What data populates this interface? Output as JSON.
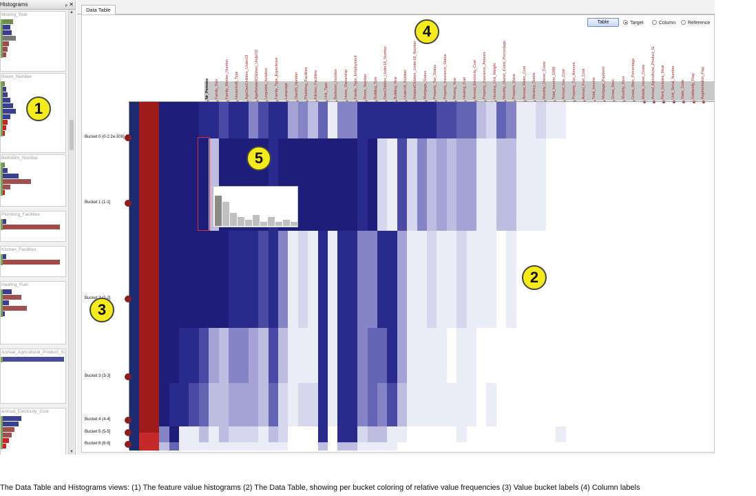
{
  "histograms_panel": {
    "title": "Histograms",
    "controls": {
      "pin": "ₚ",
      "close": "✕"
    },
    "cards": [
      {
        "title": "Moving_Year",
        "bars": [
          {
            "w": 18,
            "c": "#6f8f4f"
          },
          {
            "w": 14,
            "c": "#3b3f8f"
          },
          {
            "w": 16,
            "c": "#3b3f8f"
          },
          {
            "w": 22,
            "c": "#777777"
          },
          {
            "w": 12,
            "c": "#a14a4a"
          },
          {
            "w": 10,
            "c": "#a14a4a"
          },
          {
            "w": 8,
            "c": "#a14a4a"
          }
        ]
      },
      {
        "title": "Room_Number",
        "bars": [
          {
            "w": 6,
            "c": "#6f8f4f"
          },
          {
            "w": 8,
            "c": "#3b3f8f"
          },
          {
            "w": 10,
            "c": "#3b3f8f"
          },
          {
            "w": 14,
            "c": "#3b3f8f"
          },
          {
            "w": 18,
            "c": "#3b3f8f"
          },
          {
            "w": 22,
            "c": "#3b3f8f"
          },
          {
            "w": 14,
            "c": "#3b3f8f"
          },
          {
            "w": 10,
            "c": "#cc2222"
          },
          {
            "w": 8,
            "c": "#cc2222"
          },
          {
            "w": 6,
            "c": "#cc2222"
          }
        ]
      },
      {
        "title": "Bedroom_Number",
        "bars": [
          {
            "w": 6,
            "c": "#6f8f4f"
          },
          {
            "w": 10,
            "c": "#3b3f8f"
          },
          {
            "w": 26,
            "c": "#3b3f8f"
          },
          {
            "w": 44,
            "c": "#a05050"
          },
          {
            "w": 14,
            "c": "#a05050"
          },
          {
            "w": 6,
            "c": "#cc2222"
          }
        ]
      },
      {
        "title": "Plumbing_Facilities",
        "bars": [
          {
            "w": 8,
            "c": "#3b3f8f"
          },
          {
            "w": 86,
            "c": "#a14a4a"
          }
        ]
      },
      {
        "title": "Kitchen_Facilities",
        "bars": [
          {
            "w": 8,
            "c": "#3b3f8f"
          },
          {
            "w": 86,
            "c": "#a14a4a"
          }
        ]
      },
      {
        "title": "Heating_Fuel",
        "bars": [
          {
            "w": 16,
            "c": "#3b3f8f"
          },
          {
            "w": 30,
            "c": "#a05050"
          },
          {
            "w": 12,
            "c": "#3b3f8f"
          },
          {
            "w": 38,
            "c": "#a05050"
          },
          {
            "w": 6,
            "c": "#3b3f8f"
          }
        ]
      },
      {
        "title": "Annual_Agricultural_Product_Si",
        "bars": [
          {
            "w": 92,
            "c": "#4a4a9a"
          }
        ]
      },
      {
        "title": "Annual_Electricity_Cost",
        "bars": [
          {
            "w": 30,
            "c": "#3b3f8f"
          },
          {
            "w": 26,
            "c": "#3b3f8f"
          },
          {
            "w": 20,
            "c": "#a05050"
          },
          {
            "w": 16,
            "c": "#a05050"
          },
          {
            "w": 12,
            "c": "#cc2222"
          },
          {
            "w": 8,
            "c": "#cc2222"
          }
        ]
      }
    ]
  },
  "main": {
    "tab_label": "Data Table",
    "table_button": "Table",
    "radios": [
      {
        "label": "Target",
        "selected": true
      },
      {
        "label": "Column",
        "selected": false
      },
      {
        "label": "Reference",
        "selected": false
      }
    ]
  },
  "columns": [
    {
      "name": "Nr_Persons",
      "black": true
    },
    {
      "name": "Family_Size"
    },
    {
      "name": "Family_Worker_Number"
    },
    {
      "name": "Household_Type"
    },
    {
      "name": "AgeOwnChildren_Under18"
    },
    {
      "name": "AgeRelatedChildren_Under18"
    },
    {
      "name": "Linguistic_Isolation"
    },
    {
      "name": "Family_Type_Experience"
    },
    {
      "name": "Language"
    },
    {
      "name": "Own65_Number"
    },
    {
      "name": "Plumbing_Facilities"
    },
    {
      "name": "Kitchen_Facilities"
    },
    {
      "name": "Unit_Type"
    },
    {
      "name": "Bedroom_Number"
    },
    {
      "name": "Home_Ownership"
    },
    {
      "name": "Family_Type_Employment"
    },
    {
      "name": "Room_Number"
    },
    {
      "name": "Building_Size"
    },
    {
      "name": "OwnChildren_Under18_Number"
    },
    {
      "name": "Building_Year"
    },
    {
      "name": "Under18_Number"
    },
    {
      "name": "RelatedChildren_Under18_Number"
    },
    {
      "name": "Mortgage_Status"
    },
    {
      "name": "Property_Tax_Status"
    },
    {
      "name": "Property_Insurance_Status"
    },
    {
      "name": "Moving_Year"
    },
    {
      "name": "Heating_Fuel"
    },
    {
      "name": "Annual_Electricity_Cost"
    },
    {
      "name": "Property_Insurance_Amount"
    },
    {
      "name": "Housing_Unit_Weight"
    },
    {
      "name": "Monthly_Owner_Costs_Percentage"
    },
    {
      "name": "Property_Value"
    },
    {
      "name": "Annual_Water_Cost"
    },
    {
      "name": "Vacancy_Status"
    },
    {
      "name": "Monthly_Owner_Costs"
    },
    {
      "name": "Total_Income_1999"
    },
    {
      "name": "Annual_Gas_Cost"
    },
    {
      "name": "Property_Tax_Amount"
    },
    {
      "name": "Annual_Fuel_Cost"
    },
    {
      "name": "Total_Income"
    },
    {
      "name": "Mortgage_Payment"
    },
    {
      "name": "Gross_Rent"
    },
    {
      "name": "Monthly_Rent"
    },
    {
      "name": "Gross_Rent_Percentage"
    },
    {
      "name": "Mobile_Home_Costs"
    },
    {
      "name": "Annual_Agricultural_Product_Si"
    },
    {
      "name": "Rent_Includes_Meal"
    },
    {
      "name": "Unit_Serial_Number"
    },
    {
      "name": "State_Code"
    },
    {
      "name": "Subfamily_Flag"
    },
    {
      "name": "Augmentation_Flag"
    }
  ],
  "rows": [
    {
      "label": "Bucket 0 (0-2.2e-308]",
      "shades": [
        9,
        8,
        8,
        9,
        9,
        9,
        9,
        8,
        8,
        7,
        8,
        8,
        5,
        7,
        8,
        8,
        4,
        5,
        3,
        6,
        1,
        5,
        5,
        8,
        8,
        8,
        8,
        8,
        8,
        8,
        8,
        7,
        7,
        6,
        6,
        3,
        2,
        6,
        5,
        1,
        1,
        2,
        1,
        1,
        0,
        0,
        0,
        0,
        0,
        0,
        0
      ]
    },
    {
      "label": "Bucket 1 (1-1]",
      "shades": [
        9,
        8,
        8,
        9,
        9,
        9,
        9,
        9,
        3,
        9,
        9,
        9,
        9,
        9,
        8,
        9,
        9,
        9,
        9,
        9,
        9,
        9,
        9,
        8,
        9,
        2,
        1,
        7,
        2,
        5,
        3,
        4,
        3,
        4,
        4,
        1,
        1,
        3,
        3,
        1,
        1,
        1,
        0,
        0,
        0,
        0,
        0,
        0,
        0,
        0,
        0
      ]
    },
    {
      "label": "Bucket 2 (2-2]",
      "shades": [
        9,
        8,
        8,
        9,
        9,
        9,
        9,
        9,
        9,
        9,
        8,
        8,
        8,
        7,
        8,
        5,
        1,
        2,
        1,
        8,
        1,
        8,
        8,
        5,
        5,
        8,
        8,
        4,
        1,
        1,
        2,
        1,
        1,
        2,
        1,
        1,
        1,
        0,
        1,
        0,
        0,
        0,
        0,
        0,
        0,
        0,
        0,
        0,
        0,
        0,
        0
      ]
    },
    {
      "label": "Bucket 3 (3-3]",
      "shades": [
        9,
        8,
        8,
        9,
        9,
        8,
        8,
        7,
        4,
        3,
        5,
        5,
        4,
        3,
        7,
        3,
        1,
        1,
        1,
        8,
        1,
        8,
        8,
        5,
        6,
        6,
        8,
        4,
        1,
        1,
        1,
        1,
        0,
        1,
        1,
        0,
        0,
        0,
        0,
        0,
        0,
        0,
        0,
        0,
        0,
        0,
        0,
        0,
        0,
        0,
        0
      ]
    },
    {
      "label": "Bucket 4 (4-4]",
      "shades": [
        9,
        8,
        8,
        9,
        8,
        8,
        7,
        6,
        3,
        3,
        4,
        4,
        4,
        3,
        6,
        2,
        1,
        2,
        2,
        8,
        1,
        8,
        8,
        5,
        6,
        5,
        7,
        3,
        1,
        1,
        1,
        1,
        1,
        1,
        1,
        0,
        1,
        0,
        0,
        0,
        0,
        0,
        0,
        0,
        0,
        0,
        0,
        0,
        0,
        0,
        0
      ]
    },
    {
      "label": "Bucket 5 (5-5]",
      "shades": [
        9,
        8,
        8,
        5,
        9,
        1,
        1,
        3,
        1,
        3,
        2,
        2,
        2,
        1,
        3,
        2,
        0,
        0,
        0,
        8,
        0,
        8,
        8,
        2,
        3,
        3,
        1,
        1,
        0,
        0,
        0,
        0,
        0,
        1,
        0,
        0,
        0,
        0,
        0,
        0,
        0,
        0,
        0,
        1,
        0,
        0,
        0,
        0,
        0,
        0,
        0
      ]
    },
    {
      "label": "Bucket 6 (6-6]",
      "shades": [
        9,
        8,
        8,
        3,
        6,
        1,
        1,
        1,
        1,
        1,
        1,
        1,
        1,
        1,
        1,
        1,
        0,
        0,
        0,
        3,
        0,
        3,
        3,
        1,
        1,
        1,
        1,
        0,
        0,
        0,
        0,
        0,
        0,
        0,
        0,
        0,
        0,
        0,
        0,
        0,
        0,
        0,
        0,
        0,
        0,
        0,
        0,
        0,
        0,
        0,
        0
      ]
    }
  ],
  "mini_histogram": {
    "values": [
      14,
      11,
      6,
      4,
      3,
      5,
      2,
      4,
      2,
      3,
      2
    ]
  },
  "callouts": [
    "1",
    "2",
    "3",
    "4",
    "5"
  ],
  "caption": "The Data Table and Histograms views: (1) The feature value histograms (2) The Data Table, showing per bucket coloring of relative value frequencies (3) Value bucket labels (4) Column labels"
}
